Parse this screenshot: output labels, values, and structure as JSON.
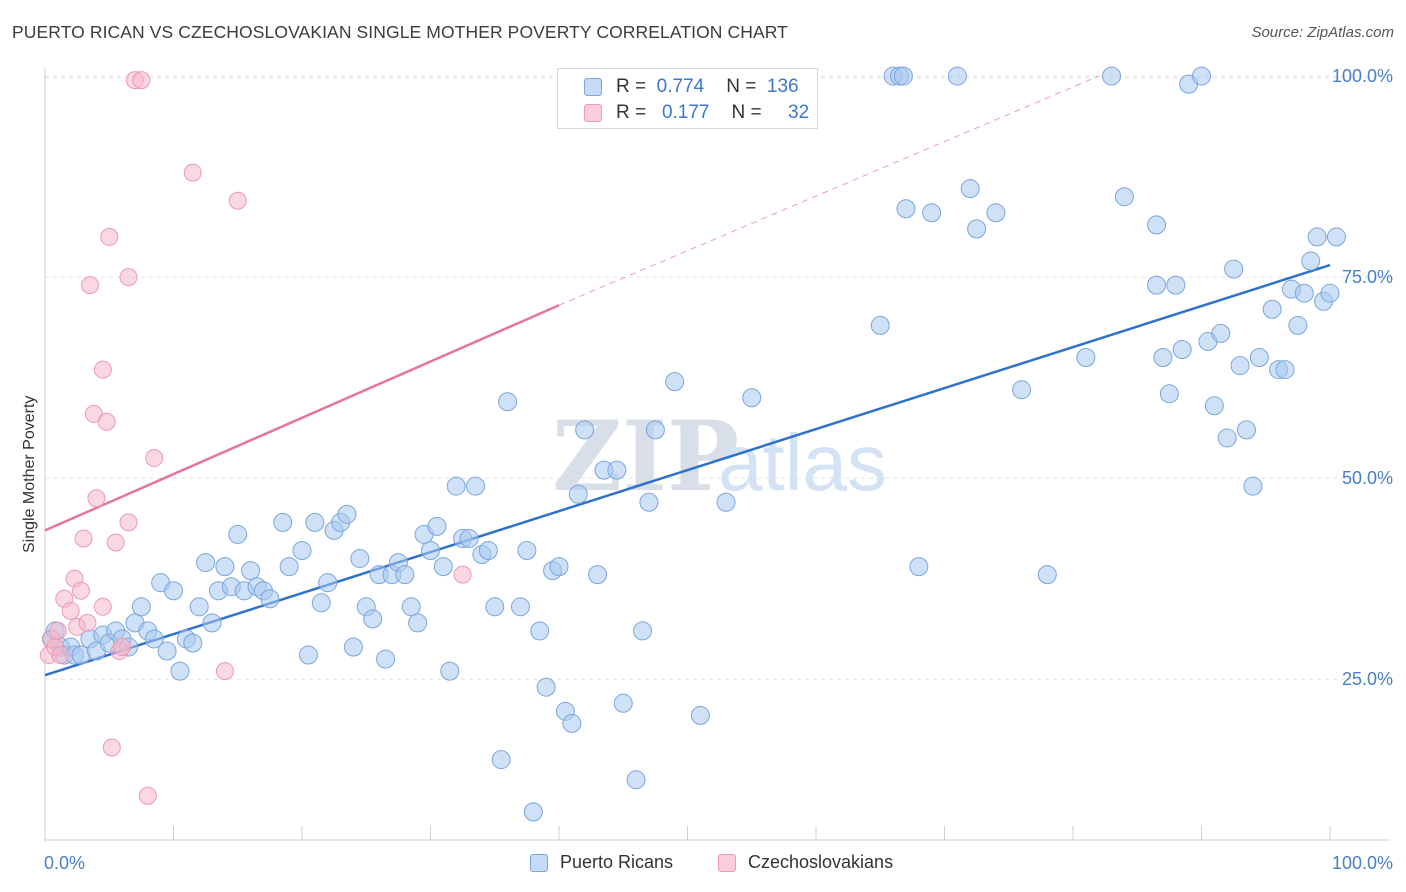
{
  "header": {
    "title": "PUERTO RICAN VS CZECHOSLOVAKIAN SINGLE MOTHER POVERTY CORRELATION CHART",
    "source": "Source: ZipAtlas.com"
  },
  "watermark": {
    "zip": "ZIP",
    "atlas": "atlas"
  },
  "legend": {
    "rows": [
      {
        "r_label": "R =",
        "r_value": "0.774",
        "n_label": "N =",
        "n_value": "136",
        "color": "#a8c8f0"
      },
      {
        "r_label": "R =",
        "r_value": "0.177",
        "n_label": "N =",
        "n_value": "32",
        "color": "#f5b8cb"
      }
    ]
  },
  "bottom_legend": [
    {
      "label": "Puerto Ricans",
      "color": "#a8c8f0"
    },
    {
      "label": "Czechoslovakians",
      "color": "#f5b8cb"
    }
  ],
  "chart_data": {
    "type": "scatter",
    "title": "PUERTO RICAN VS CZECHOSLOVAKIAN SINGLE MOTHER POVERTY CORRELATION CHART",
    "xlabel": "",
    "ylabel": "Single Mother Poverty",
    "xlim": [
      0,
      100
    ],
    "ylim": [
      5,
      102
    ],
    "x_tick_labels": [
      "0.0%",
      "100.0%"
    ],
    "y_tick_labels": [
      {
        "value": 25,
        "label": "25.0%"
      },
      {
        "value": 50,
        "label": "50.0%"
      },
      {
        "value": 75,
        "label": "75.0%"
      },
      {
        "value": 100,
        "label": "100.0%"
      }
    ],
    "grid": true,
    "legend_position": "top-center",
    "colors": {
      "puerto_ricans": "#6fa3e0",
      "czechoslovakians": "#f09ab5",
      "pr_trend": "#2f72c9",
      "cz_trend": "#e7749a"
    },
    "series": [
      {
        "name": "Puerto Ricans",
        "trend": {
          "x0": 0,
          "y0": 25.5,
          "x1": 100,
          "y1": 76.5
        },
        "points": [
          [
            0.5,
            30
          ],
          [
            0.8,
            31
          ],
          [
            1.2,
            29
          ],
          [
            1.5,
            28
          ],
          [
            2,
            29
          ],
          [
            2.3,
            28
          ],
          [
            2.8,
            28
          ],
          [
            3.5,
            30
          ],
          [
            4,
            28.5
          ],
          [
            4.5,
            30.5
          ],
          [
            5,
            29.5
          ],
          [
            5.5,
            31
          ],
          [
            6,
            30
          ],
          [
            6.5,
            29
          ],
          [
            7,
            32
          ],
          [
            7.5,
            34
          ],
          [
            8,
            31
          ],
          [
            8.5,
            30
          ],
          [
            9,
            37
          ],
          [
            9.5,
            28.5
          ],
          [
            10,
            36
          ],
          [
            10.5,
            26
          ],
          [
            11,
            30
          ],
          [
            11.5,
            29.5
          ],
          [
            12,
            34
          ],
          [
            12.5,
            39.5
          ],
          [
            13,
            32
          ],
          [
            13.5,
            36
          ],
          [
            14,
            39
          ],
          [
            14.5,
            36.5
          ],
          [
            15,
            43
          ],
          [
            15.5,
            36
          ],
          [
            16,
            38.5
          ],
          [
            16.5,
            36.5
          ],
          [
            17,
            36
          ],
          [
            17.5,
            35
          ],
          [
            18.5,
            44.5
          ],
          [
            19,
            39
          ],
          [
            20,
            41
          ],
          [
            20.5,
            28
          ],
          [
            21,
            44.5
          ],
          [
            21.5,
            34.5
          ],
          [
            22,
            37
          ],
          [
            22.5,
            43.5
          ],
          [
            23,
            44.5
          ],
          [
            23.5,
            45.5
          ],
          [
            24,
            29
          ],
          [
            24.5,
            40
          ],
          [
            25,
            34
          ],
          [
            25.5,
            32.5
          ],
          [
            26,
            38
          ],
          [
            26.5,
            27.5
          ],
          [
            27,
            38
          ],
          [
            27.5,
            39.5
          ],
          [
            28,
            38
          ],
          [
            28.5,
            34
          ],
          [
            29,
            32
          ],
          [
            29.5,
            43
          ],
          [
            30,
            41
          ],
          [
            30.5,
            44
          ],
          [
            31,
            39
          ],
          [
            31.5,
            26
          ],
          [
            32,
            49
          ],
          [
            32.5,
            42.5
          ],
          [
            33,
            42.5
          ],
          [
            33.5,
            49
          ],
          [
            34,
            40.5
          ],
          [
            34.5,
            41
          ],
          [
            35,
            34
          ],
          [
            35.5,
            15
          ],
          [
            36,
            59.5
          ],
          [
            37,
            34
          ],
          [
            37.5,
            41
          ],
          [
            38,
            8.5
          ],
          [
            38.5,
            31
          ],
          [
            39,
            24
          ],
          [
            39.5,
            38.5
          ],
          [
            40,
            39
          ],
          [
            40.5,
            21
          ],
          [
            41,
            19.5
          ],
          [
            41.5,
            48
          ],
          [
            42,
            56
          ],
          [
            43,
            38
          ],
          [
            43.5,
            51
          ],
          [
            44.5,
            51
          ],
          [
            45,
            22
          ],
          [
            46,
            12.5
          ],
          [
            46.5,
            31
          ],
          [
            47,
            47
          ],
          [
            47.5,
            56
          ],
          [
            49,
            62
          ],
          [
            51,
            20.5
          ],
          [
            53,
            47
          ],
          [
            55,
            60
          ],
          [
            65,
            69
          ],
          [
            66,
            100
          ],
          [
            66.5,
            100
          ],
          [
            66.8,
            100
          ],
          [
            67,
            83.5
          ],
          [
            68,
            39
          ],
          [
            69,
            83
          ],
          [
            71,
            100
          ],
          [
            72,
            86
          ],
          [
            72.5,
            81
          ],
          [
            74,
            83
          ],
          [
            76,
            61
          ],
          [
            78,
            38
          ],
          [
            81,
            65
          ],
          [
            83,
            100
          ],
          [
            84,
            85
          ],
          [
            86.5,
            81.5
          ],
          [
            86.5,
            74
          ],
          [
            87,
            65
          ],
          [
            87.5,
            60.5
          ],
          [
            88,
            74
          ],
          [
            88.5,
            66
          ],
          [
            89,
            99
          ],
          [
            90,
            100
          ],
          [
            90.5,
            67
          ],
          [
            91,
            59
          ],
          [
            91.5,
            68
          ],
          [
            92,
            55
          ],
          [
            92.5,
            76
          ],
          [
            93,
            64
          ],
          [
            93.5,
            56
          ],
          [
            94,
            49
          ],
          [
            94.5,
            65
          ],
          [
            95.5,
            71
          ],
          [
            96,
            63.5
          ],
          [
            96.5,
            63.5
          ],
          [
            97,
            73.5
          ],
          [
            97.5,
            69
          ],
          [
            98,
            73
          ],
          [
            98.5,
            77
          ],
          [
            99,
            80
          ],
          [
            99.5,
            72
          ],
          [
            100,
            73
          ],
          [
            100.5,
            80
          ]
        ]
      },
      {
        "name": "Czechoslovakians",
        "trend": {
          "x0": 0,
          "y0": 43.5,
          "x1": 40,
          "y1": 71.5,
          "dashed_to": {
            "x": 82,
            "y": 100
          }
        },
        "points": [
          [
            0.3,
            28
          ],
          [
            0.5,
            30
          ],
          [
            0.8,
            29
          ],
          [
            1,
            31
          ],
          [
            1.2,
            28
          ],
          [
            1.5,
            35
          ],
          [
            2,
            33.5
          ],
          [
            2.3,
            37.5
          ],
          [
            2.5,
            31.5
          ],
          [
            2.8,
            36
          ],
          [
            3,
            42.5
          ],
          [
            3.3,
            32
          ],
          [
            3.5,
            74
          ],
          [
            3.8,
            58
          ],
          [
            4,
            47.5
          ],
          [
            4.5,
            34
          ],
          [
            4.5,
            63.5
          ],
          [
            4.8,
            57
          ],
          [
            5,
            80
          ],
          [
            5.2,
            16.5
          ],
          [
            5.5,
            42
          ],
          [
            5.8,
            28.5
          ],
          [
            6,
            29
          ],
          [
            6.5,
            44.5
          ],
          [
            6.5,
            75
          ],
          [
            7,
            99.5
          ],
          [
            7.5,
            99.5
          ],
          [
            8,
            10.5
          ],
          [
            8.5,
            52.5
          ],
          [
            11.5,
            88
          ],
          [
            14,
            26
          ],
          [
            15,
            84.5
          ],
          [
            32.5,
            38
          ]
        ]
      }
    ]
  }
}
